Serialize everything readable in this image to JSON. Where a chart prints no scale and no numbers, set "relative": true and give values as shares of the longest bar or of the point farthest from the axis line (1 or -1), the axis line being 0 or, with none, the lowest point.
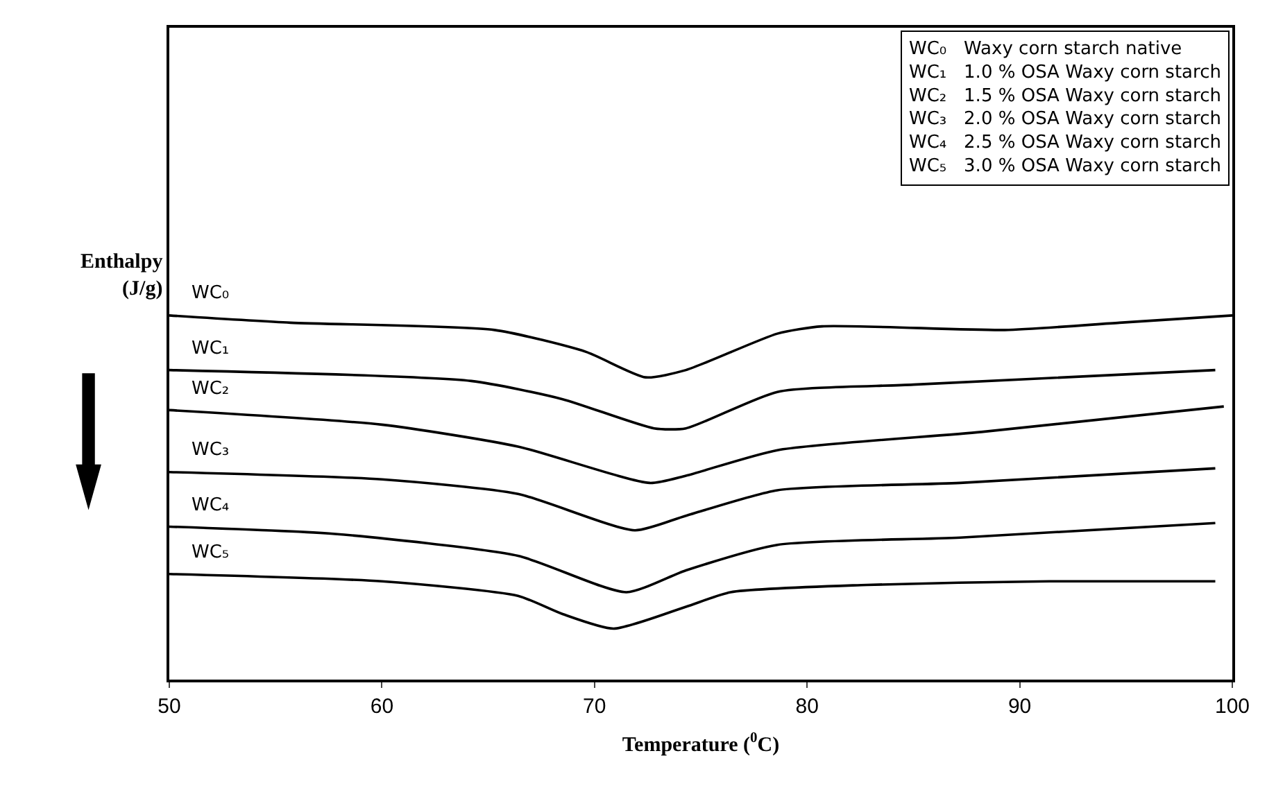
{
  "chart_data": {
    "type": "line",
    "relative": true,
    "xlabel": "Temperature ($^{0}$C)",
    "ylabel": "Enthalpy (J/g)",
    "xlim": [
      50,
      100
    ],
    "xticks": [
      50,
      60,
      70,
      80,
      90,
      100
    ],
    "tick_labels": "x",
    "marker": "none",
    "line_style": "solid",
    "annotations": [
      "WC₀   Waxy corn starch native",
      "WC₁   1.0 % OSA Waxy corn starch",
      "WC₂   1.5 % OSA Waxy corn starch",
      "WC₃   2.0 % OSA Waxy corn starch",
      "WC₄   2.5 % OSA Waxy corn starch",
      "WC₅   3.0 % OSA Waxy corn starch"
    ],
    "series": [
      {
        "name": "WC₀",
        "color": "#000000",
        "x": [
          50,
          55.7,
          65.3,
          69.6,
          72.4,
          74.3,
          78.6,
          80.7,
          89.3,
          94.7,
          100
        ],
        "values": [
          1.0,
          0.98,
          0.96,
          0.9,
          0.83,
          0.85,
          0.95,
          0.97,
          0.96,
          0.98,
          1.0
        ]
      },
      {
        "name": "WC₁",
        "color": "#000000",
        "x": [
          50,
          64.2,
          68.5,
          72.8,
          74.3,
          78.6,
          85,
          99.2
        ],
        "values": [
          0.85,
          0.82,
          0.77,
          0.69,
          0.69,
          0.79,
          0.81,
          0.85
        ]
      },
      {
        "name": "WC₂",
        "color": "#000000",
        "x": [
          50,
          60,
          66.4,
          72.6,
          74.3,
          78.6,
          88.2,
          99.6
        ],
        "values": [
          0.74,
          0.7,
          0.64,
          0.54,
          0.56,
          0.63,
          0.68,
          0.75
        ]
      },
      {
        "name": "WC₃",
        "color": "#000000",
        "x": [
          50,
          60,
          66.4,
          71.9,
          74.3,
          78.6,
          87.2,
          99.2
        ],
        "values": [
          0.57,
          0.55,
          0.51,
          0.41,
          0.45,
          0.52,
          0.54,
          0.58
        ]
      },
      {
        "name": "WC₄",
        "color": "#000000",
        "x": [
          50,
          57.8,
          66.4,
          71.5,
          74.3,
          78.6,
          87.2,
          99.2
        ],
        "values": [
          0.42,
          0.4,
          0.34,
          0.24,
          0.3,
          0.37,
          0.39,
          0.43
        ]
      },
      {
        "name": "WC₅",
        "color": "#000000",
        "x": [
          50,
          60,
          66.4,
          68.5,
          70.9,
          74.3,
          76.4,
          82.8,
          91.4,
          99.2
        ],
        "values": [
          0.29,
          0.27,
          0.23,
          0.18,
          0.14,
          0.2,
          0.24,
          0.26,
          0.27,
          0.27
        ]
      }
    ]
  }
}
